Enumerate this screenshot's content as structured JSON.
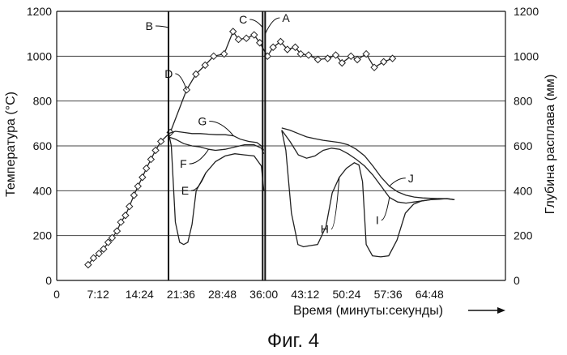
{
  "chart_data": {
    "type": "line",
    "caption": "Фиг. 4",
    "xlabel": "Время (минуты:секунды)",
    "ylabel_left": "Температура (°C)",
    "ylabel_right": "Глубина расплава (мм)",
    "xlim_seconds": [
      0,
      4680
    ],
    "x_tick_labels": [
      "0",
      "7:12",
      "14:24",
      "21:36",
      "28:48",
      "36:00",
      "43:12",
      "50:24",
      "57:36",
      "64:48"
    ],
    "x_tick_values": [
      "0:00",
      "7:12",
      "14:24",
      "21:36",
      "28:48",
      "36:00",
      "43:12",
      "50:24",
      "57:36",
      "64:48"
    ],
    "ylim_left": [
      0,
      1200
    ],
    "y_ticks_left": [
      0,
      200,
      400,
      600,
      800,
      1000,
      1200
    ],
    "ylim_right": [
      0,
      1200
    ],
    "y_ticks_right": [
      0,
      200,
      400,
      600,
      800,
      1000,
      1200
    ],
    "grid": "horizontal",
    "series": [
      {
        "name": "D",
        "axis": "left",
        "marker": "diamond",
        "x": [
          "5:28",
          "6:24",
          "7:21",
          "8:09",
          "8:57",
          "9:38",
          "10:29",
          "11:09",
          "11:57",
          "12:38",
          "13:26",
          "14:07",
          "14:54",
          "15:35",
          "16:23",
          "17:11",
          "18:07",
          "19:44",
          "22:35",
          "24:12",
          "25:48",
          "27:17",
          "29:06",
          "30:39",
          "31:36",
          "32:58",
          "34:19",
          "35:18",
          "36:38",
          "37:37",
          "38:55",
          "40:06",
          "41:28",
          "42:25",
          "43:47",
          "45:24",
          "47:06",
          "48:30",
          "49:36",
          "51:09",
          "52:15",
          "53:48",
          "55:12",
          "56:50",
          "58:22"
        ],
        "y": [
          70,
          100,
          120,
          140,
          170,
          190,
          220,
          260,
          290,
          330,
          380,
          420,
          460,
          500,
          540,
          580,
          620,
          660,
          850,
          920,
          960,
          1000,
          1010,
          1110,
          1075,
          1080,
          1095,
          1060,
          1000,
          1040,
          1065,
          1030,
          1040,
          1010,
          1005,
          985,
          990,
          1005,
          970,
          1000,
          985,
          1010,
          950,
          975,
          990
        ]
      },
      {
        "name": "E",
        "axis": "right",
        "x": [
          "19:26",
          "19:55",
          "20:38",
          "21:22",
          "22:05",
          "22:48",
          "23:32",
          "24:15",
          "25:55",
          "27:36",
          "29:17",
          "30:58",
          "32:38",
          "34:19",
          "35:35",
          "36:00"
        ],
        "y": [
          660,
          600,
          260,
          170,
          160,
          170,
          250,
          400,
          480,
          530,
          555,
          565,
          560,
          555,
          510,
          400
        ]
      },
      {
        "name": "F",
        "axis": "right",
        "x": [
          "19:26",
          "20:38",
          "22:05",
          "23:32",
          "24:58",
          "26:25",
          "27:36",
          "29:17",
          "30:58",
          "32:38",
          "34:19",
          "35:35",
          "36:00"
        ],
        "y": [
          640,
          630,
          610,
          600,
          595,
          585,
          580,
          585,
          595,
          605,
          605,
          590,
          565
        ]
      },
      {
        "name": "G",
        "axis": "right",
        "x": [
          "19:26",
          "20:38",
          "22:05",
          "23:32",
          "24:58",
          "26:25",
          "27:50",
          "29:17",
          "30:44",
          "31:54",
          "33:22",
          "34:48",
          "35:35",
          "36:00"
        ],
        "y": [
          655,
          665,
          660,
          655,
          655,
          652,
          650,
          650,
          645,
          630,
          620,
          615,
          600,
          580
        ]
      },
      {
        "name": "H",
        "axis": "right",
        "x": [
          "39:07",
          "39:50",
          "40:48",
          "41:56",
          "42:53",
          "44:00",
          "45:21",
          "46:48",
          "47:53",
          "49:07",
          "50:21",
          "51:44",
          "52:32",
          "53:10",
          "53:48",
          "54:53",
          "56:19",
          "57:43",
          "59:09",
          "60:36",
          "62:02",
          "63:29",
          "64:55",
          "66:22",
          "67:48",
          "69:09"
        ],
        "y": [
          670,
          580,
          300,
          160,
          150,
          155,
          160,
          240,
          390,
          460,
          500,
          525,
          515,
          440,
          160,
          110,
          105,
          110,
          180,
          300,
          340,
          355,
          360,
          365,
          365,
          360
        ]
      },
      {
        "name": "I",
        "axis": "right",
        "x": [
          "39:07",
          "40:33",
          "42:00",
          "43:26",
          "44:53",
          "46:19",
          "47:46",
          "49:12",
          "50:39",
          "52:05",
          "53:32",
          "54:58",
          "56:24",
          "57:50",
          "59:16",
          "60:43",
          "62:09",
          "63:36",
          "65:02",
          "66:29",
          "67:55",
          "69:09"
        ],
        "y": [
          670,
          620,
          560,
          545,
          555,
          580,
          590,
          585,
          565,
          540,
          510,
          470,
          420,
          370,
          350,
          345,
          350,
          355,
          360,
          362,
          365,
          360
        ]
      },
      {
        "name": "J",
        "axis": "right",
        "x": [
          "39:07",
          "40:33",
          "42:00",
          "43:26",
          "44:53",
          "46:19",
          "47:46",
          "49:12",
          "50:39",
          "52:05",
          "53:32",
          "54:58",
          "56:24",
          "57:50",
          "59:16",
          "60:43",
          "62:09",
          "63:36",
          "65:02",
          "66:29",
          "67:55",
          "69:09"
        ],
        "y": [
          680,
          670,
          655,
          640,
          632,
          625,
          620,
          615,
          605,
          585,
          555,
          510,
          460,
          420,
          395,
          380,
          372,
          368,
          366,
          365,
          364,
          360
        ]
      }
    ],
    "vertical_markers": [
      {
        "name": "B",
        "x": "19:26"
      },
      {
        "name": "C",
        "x": "35:48"
      },
      {
        "name": "A",
        "x": "36:14"
      }
    ],
    "callout_labels": [
      "A",
      "B",
      "C",
      "D",
      "E",
      "F",
      "G",
      "H",
      "I",
      "J"
    ]
  }
}
